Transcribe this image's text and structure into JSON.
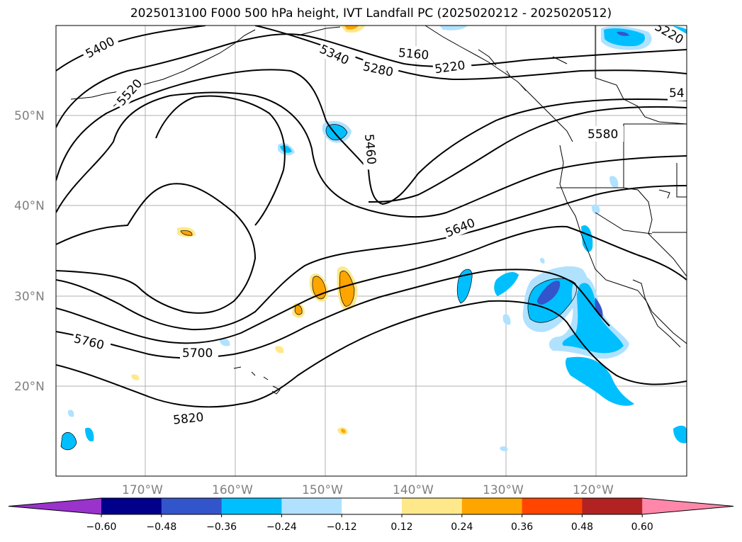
{
  "title": "2025013100 F000 500 hPa height, IVT Landfall PC (2025020212 - 2025020512)",
  "lat_labels": [
    "50°N",
    "40°N",
    "30°N",
    "20°N"
  ],
  "lon_labels": [
    "170°W",
    "160°W",
    "150°W",
    "140°W",
    "130°W",
    "120°W"
  ],
  "contour_labels": [
    "5400",
    "5520",
    "5340",
    "5280",
    "5160",
    "5220",
    "5460",
    "5580",
    "5640",
    "5700",
    "5760",
    "5820",
    "5220",
    "54"
  ],
  "colorbar": {
    "ticks": [
      "−0.60",
      "−0.48",
      "−0.36",
      "−0.24",
      "−0.12",
      "0.12",
      "0.24",
      "0.36",
      "0.48",
      "0.60"
    ],
    "colors": [
      "#9933cc",
      "#00008b",
      "#3355cc",
      "#00bfff",
      "#b0e2ff",
      "#ffffff",
      "#ffe88a",
      "#ffa500",
      "#ff4500",
      "#b22222",
      "#ff88aa"
    ]
  }
}
